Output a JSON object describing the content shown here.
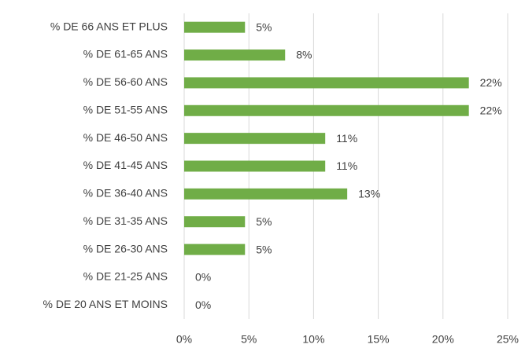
{
  "chart_data": {
    "type": "hbar",
    "categories": [
      "% DE 66 ANS ET PLUS",
      "% DE 61-65 ANS",
      "% DE 56-60 ANS",
      "% DE 51-55 ANS",
      "% DE 46-50 ANS",
      "% DE 41-45 ANS",
      "% DE 36-40 ANS",
      "% DE 31-35 ANS",
      "% DE 26-30 ANS",
      "% DE 21-25 ANS",
      "% DE 20 ANS ET MOINS"
    ],
    "values": [
      4.7,
      7.8,
      22.0,
      22.0,
      10.9,
      10.9,
      12.6,
      4.7,
      4.7,
      0,
      0
    ],
    "value_labels": [
      "5%",
      "8%",
      "22%",
      "22%",
      "11%",
      "11%",
      "13%",
      "5%",
      "5%",
      "0%",
      "0%"
    ],
    "color": "#70ad47",
    "xlim": [
      0,
      25
    ],
    "xticks": [
      {
        "value": 0,
        "label": "0%"
      },
      {
        "value": 5,
        "label": "5%"
      },
      {
        "value": 10,
        "label": "10%"
      },
      {
        "value": 15,
        "label": "15%"
      },
      {
        "value": 20,
        "label": "20%"
      },
      {
        "value": 25,
        "label": "25%"
      }
    ],
    "grid": true
  }
}
